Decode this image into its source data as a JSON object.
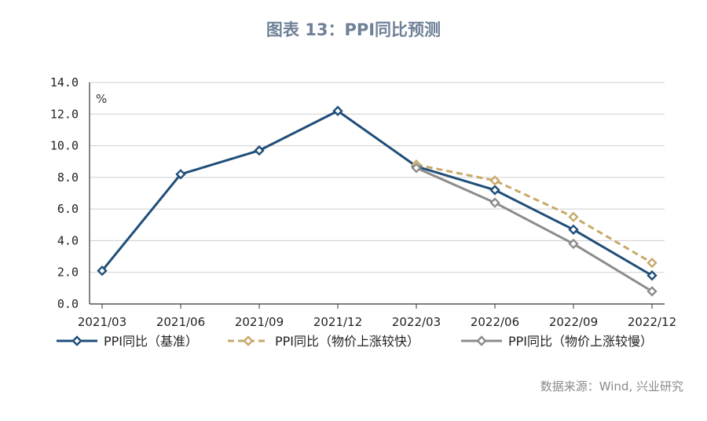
{
  "chart_data": {
    "type": "line",
    "title": "图表 13：PPI同比预测",
    "y_unit": "%",
    "ylim": [
      0,
      14
    ],
    "y_ticks": [
      "0.0",
      "2.0",
      "4.0",
      "6.0",
      "8.0",
      "10.0",
      "12.0",
      "14.0"
    ],
    "x_tick_labels": [
      "2021/03",
      "2021/06",
      "2021/09",
      "2021/12",
      "2022/03",
      "2022/06",
      "2022/09",
      "2022/12"
    ],
    "grid": true,
    "legend_position": "bottom",
    "series": [
      {
        "name": "PPI同比（基准）",
        "color": "#1f4e79",
        "dash": "solid",
        "x": [
          "2021/03",
          "2021/06",
          "2021/09",
          "2021/12",
          "2022/03",
          "2022/06",
          "2022/09",
          "2022/12"
        ],
        "values": [
          2.1,
          8.2,
          9.7,
          12.2,
          8.7,
          7.2,
          4.7,
          1.8
        ]
      },
      {
        "name": "PPI同比（物价上涨较快）",
        "color": "#c8a96b",
        "dash": "dashed",
        "x": [
          "2022/03",
          "2022/06",
          "2022/09",
          "2022/12"
        ],
        "values": [
          8.8,
          7.8,
          5.5,
          2.6
        ]
      },
      {
        "name": "PPI同比（物价上涨较慢）",
        "color": "#8c8c8c",
        "dash": "solid",
        "x": [
          "2022/03",
          "2022/06",
          "2022/09",
          "2022/12"
        ],
        "values": [
          8.6,
          6.4,
          3.8,
          0.8
        ]
      }
    ]
  },
  "source": "数据来源：Wind, 兴业研究"
}
